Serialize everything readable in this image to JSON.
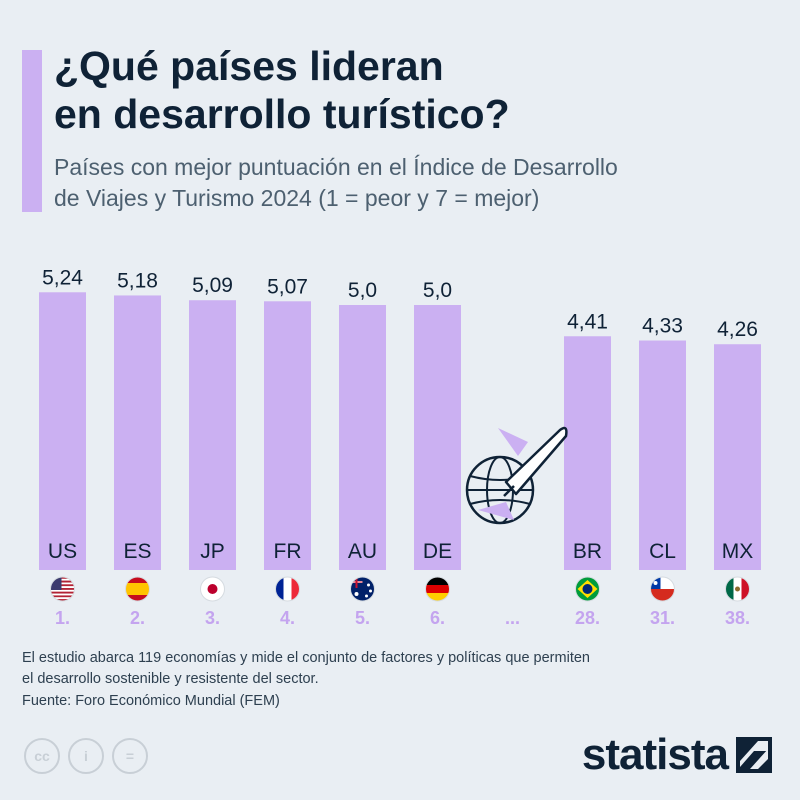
{
  "header": {
    "title": "¿Qué países lideran\nen desarrollo turístico?",
    "subtitle": "Países con mejor puntuación en el Índice de Desarrollo\nde Viajes y Turismo 2024 (1 = peor y 7 = mejor)"
  },
  "chart_data": {
    "type": "bar",
    "title": "¿Qué países lideran en desarrollo turístico?",
    "categories": [
      "US",
      "ES",
      "JP",
      "FR",
      "AU",
      "DE",
      "BR",
      "CL",
      "MX"
    ],
    "values": [
      5.24,
      5.18,
      5.09,
      5.07,
      5.0,
      5.0,
      4.41,
      4.33,
      4.26
    ],
    "value_labels": [
      "5,24",
      "5,18",
      "5,09",
      "5,07",
      "5,0",
      "5,0",
      "4,41",
      "4,33",
      "4,26"
    ],
    "ranks": [
      "1.",
      "2.",
      "3.",
      "4.",
      "5.",
      "6.",
      "28.",
      "31.",
      "38."
    ],
    "gap_label": "...",
    "flags": [
      "flag-us-icon",
      "flag-es-icon",
      "flag-jp-icon",
      "flag-fr-icon",
      "flag-au-icon",
      "flag-de-icon",
      "flag-br-icon",
      "flag-cl-icon",
      "flag-mx-icon"
    ],
    "ylim": [
      0,
      7
    ],
    "grid": false,
    "colors": {
      "bar": "#cbb0f2",
      "rank": "#c4a4ef",
      "text": "#0f2236"
    }
  },
  "decoration": {
    "icon": "airplane-globe-icon"
  },
  "footer": {
    "note": "El estudio abarca 119 economías y mide el conjunto de factores y políticas que permiten\nel desarrollo sostenible y resistente del sector.",
    "source": "Fuente: Foro Económico Mundial (FEM)",
    "license_icons": [
      "cc",
      "i",
      "="
    ],
    "brand": "statista"
  }
}
